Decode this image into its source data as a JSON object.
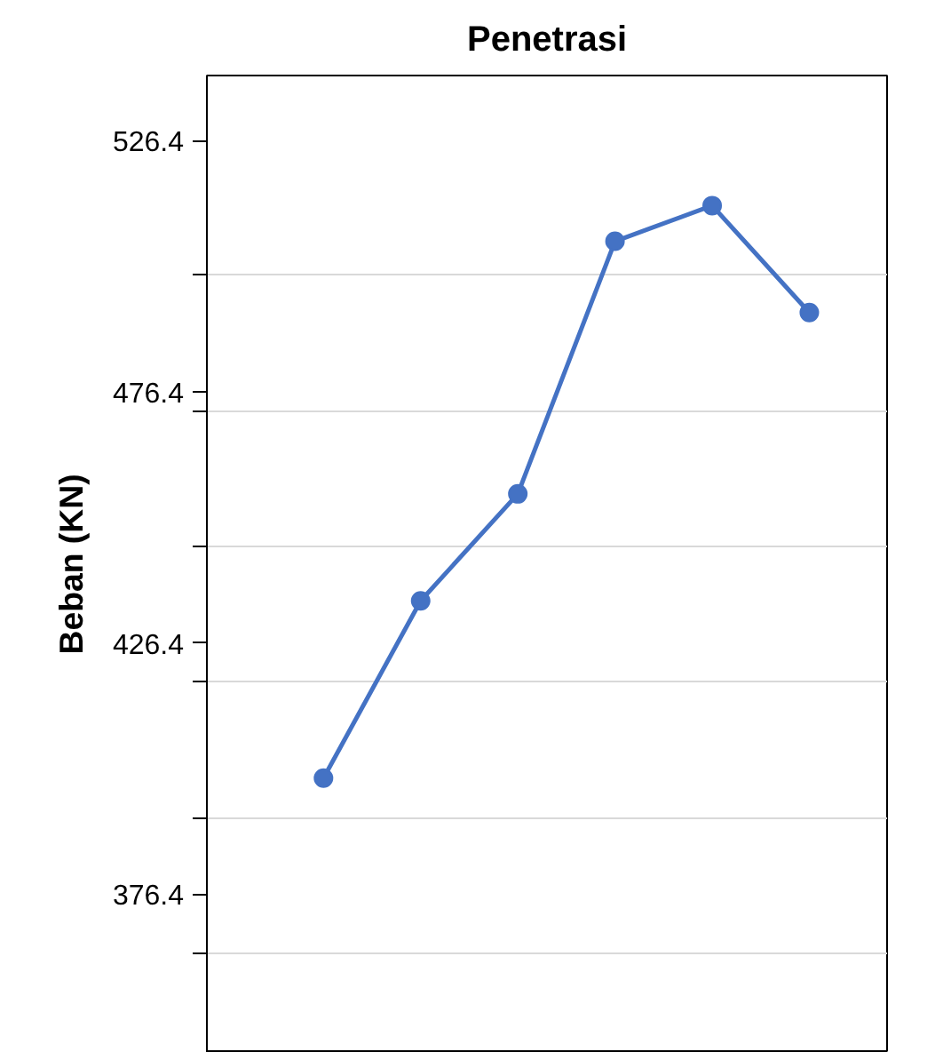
{
  "chart_data": {
    "type": "line",
    "title": "Penetrasi",
    "ylabel": "Beban (KN)",
    "categories": [
      null,
      null,
      null,
      null,
      null,
      null
    ],
    "series": [
      {
        "color": "#4472c4",
        "values": [
          399.5,
          434.8,
          456.1,
          506.4,
          513.5,
          492.2
        ]
      }
    ],
    "ylim": [
      344.8,
      539.4
    ],
    "yticks": [
      376.4,
      426.4,
      476.4,
      526.4,
      {
        "value": 364.6,
        "label": null
      },
      {
        "value": 391.6,
        "label": null
      },
      {
        "value": 418.6,
        "label": null
      },
      {
        "value": 445.6,
        "label": null
      },
      {
        "value": 472.6,
        "label": null
      },
      {
        "value": 499.6,
        "label": null
      }
    ],
    "tick_labels": "y",
    "grid": "y",
    "marker": "circle",
    "line_style": "solid"
  }
}
